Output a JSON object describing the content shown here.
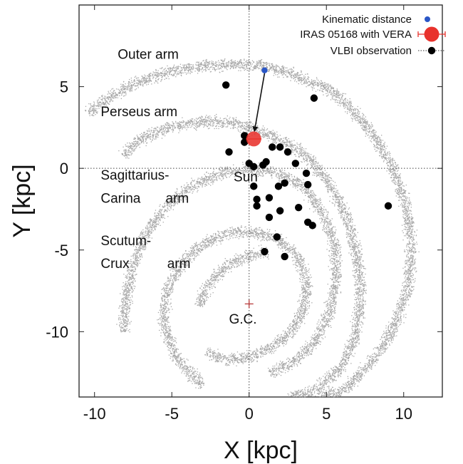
{
  "chart_data": {
    "type": "scatter",
    "xlabel": "X [kpc]",
    "ylabel": "Y [kpc]",
    "xlim": [
      -11,
      12.5
    ],
    "ylim": [
      -14,
      10
    ],
    "xticks": [
      -10,
      -5,
      0,
      5,
      10
    ],
    "xtick_labels": [
      "-10",
      "-5",
      "0",
      "5",
      "10"
    ],
    "yticks": [
      5,
      0,
      -5,
      -10
    ],
    "ytick_labels": [
      "5",
      "0",
      "-5",
      "-10"
    ],
    "zero_lines": "dotted",
    "legend_position": "top-right",
    "legend": [
      {
        "label": "Kinematic distance",
        "marker": "small-blue-dot",
        "color": "#2a56c6"
      },
      {
        "label": "IRAS 05168 with VERA",
        "marker": "large-red-dot-with-errorbar",
        "color": "#e8322c"
      },
      {
        "label": "VLBI observation",
        "marker": "black-dot-with-dotted-errorbar",
        "color": "#000000"
      }
    ],
    "arm_labels": [
      {
        "text": "Outer arm",
        "x": -8.5,
        "y": 6.7
      },
      {
        "text": "Perseus arm",
        "x": -9.6,
        "y": 3.2
      },
      {
        "text": "Sagittarius-",
        "x": -9.6,
        "y": -0.7
      },
      {
        "text": "Carina",
        "x": -9.6,
        "y": -2.1
      },
      {
        "text": "arm",
        "x": -5.4,
        "y": -2.1
      },
      {
        "text": "Scutum-",
        "x": -9.6,
        "y": -4.7
      },
      {
        "text": "Crux",
        "x": -9.6,
        "y": -6.1
      },
      {
        "text": "arm",
        "x": -5.3,
        "y": -6.1
      }
    ],
    "sun_label": {
      "text": "Sun",
      "x": -1.0,
      "y": -0.8
    },
    "gc_label": {
      "text": "G.C.",
      "x": -1.3,
      "y": -9.5
    },
    "galactic_center": {
      "x": 0.0,
      "y": -8.3
    },
    "kinematic_distance": {
      "x": 1.0,
      "y": 6.0
    },
    "iras_05168": {
      "x": 0.3,
      "y": 1.8,
      "x_err": 0.5
    },
    "arrow": {
      "from": [
        1.0,
        6.0
      ],
      "to": [
        0.35,
        2.3
      ]
    },
    "vlbi_points": [
      [
        -1.5,
        5.1
      ],
      [
        4.2,
        4.3
      ],
      [
        -0.3,
        2.0
      ],
      [
        -0.3,
        1.6
      ],
      [
        -1.3,
        1.0
      ],
      [
        1.5,
        1.3
      ],
      [
        2.0,
        1.3
      ],
      [
        2.5,
        1.0
      ],
      [
        1.1,
        0.4
      ],
      [
        0.9,
        0.2
      ],
      [
        0.0,
        0.3
      ],
      [
        0.3,
        0.1
      ],
      [
        3.0,
        0.3
      ],
      [
        3.7,
        -0.3
      ],
      [
        2.3,
        -0.9
      ],
      [
        1.9,
        -1.1
      ],
      [
        0.3,
        -1.1
      ],
      [
        0.5,
        -1.9
      ],
      [
        1.3,
        -1.8
      ],
      [
        0.5,
        -2.3
      ],
      [
        3.8,
        -1.0
      ],
      [
        3.2,
        -2.4
      ],
      [
        2.0,
        -2.6
      ],
      [
        1.3,
        -3.0
      ],
      [
        3.8,
        -3.3
      ],
      [
        4.1,
        -3.5
      ],
      [
        1.8,
        -4.2
      ],
      [
        1.0,
        -5.1
      ],
      [
        2.3,
        -5.4
      ],
      [
        9.0,
        -2.3
      ]
    ],
    "arm_tracks": {
      "outer_arm": [
        [
          -10.5,
          3.4
        ],
        [
          -9.0,
          4.4
        ],
        [
          -7.0,
          5.4
        ],
        [
          -5.0,
          6.0
        ],
        [
          -3.0,
          6.3
        ],
        [
          -1.0,
          6.4
        ],
        [
          1.0,
          6.3
        ],
        [
          3.0,
          5.7
        ],
        [
          5.0,
          4.9
        ],
        [
          6.5,
          3.8
        ],
        [
          8.0,
          2.1
        ],
        [
          9.3,
          0.0
        ],
        [
          10.2,
          -2.5
        ],
        [
          10.5,
          -5.0
        ],
        [
          10.2,
          -7.5
        ],
        [
          9.2,
          -10.0
        ],
        [
          7.8,
          -12.0
        ],
        [
          6.0,
          -13.6
        ],
        [
          4.5,
          -14.0
        ]
      ],
      "perseus_arm": [
        [
          -8.2,
          0.8
        ],
        [
          -7.0,
          1.8
        ],
        [
          -5.0,
          2.6
        ],
        [
          -3.0,
          2.9
        ],
        [
          -1.0,
          2.8
        ],
        [
          1.0,
          2.2
        ],
        [
          2.5,
          1.5
        ],
        [
          4.0,
          0.5
        ],
        [
          5.2,
          -1.0
        ],
        [
          6.3,
          -3.0
        ],
        [
          7.0,
          -5.5
        ],
        [
          7.2,
          -8.0
        ],
        [
          6.8,
          -10.5
        ],
        [
          5.8,
          -12.3
        ],
        [
          4.2,
          -13.6
        ],
        [
          2.5,
          -14.0
        ]
      ],
      "sagittarius_carina_arm": [
        [
          -8.2,
          -10.0
        ],
        [
          -8.0,
          -8.0
        ],
        [
          -7.5,
          -5.8
        ],
        [
          -6.6,
          -3.8
        ],
        [
          -5.3,
          -2.2
        ],
        [
          -3.6,
          -1.0
        ],
        [
          -1.6,
          -0.2
        ],
        [
          0.5,
          0.0
        ],
        [
          2.3,
          -0.4
        ],
        [
          3.8,
          -1.4
        ],
        [
          4.9,
          -3.0
        ],
        [
          5.5,
          -4.8
        ],
        [
          5.6,
          -6.8
        ],
        [
          5.2,
          -8.8
        ],
        [
          4.3,
          -10.5
        ],
        [
          3.0,
          -11.8
        ],
        [
          1.3,
          -12.5
        ]
      ],
      "scutum_crux_arm": [
        [
          -3.0,
          -13.3
        ],
        [
          -4.8,
          -11.5
        ],
        [
          -5.6,
          -9.3
        ],
        [
          -5.3,
          -7.3
        ],
        [
          -4.4,
          -5.8
        ],
        [
          -3.0,
          -4.6
        ],
        [
          -1.3,
          -3.9
        ],
        [
          0.5,
          -3.9
        ],
        [
          2.0,
          -4.4
        ],
        [
          3.0,
          -5.3
        ],
        [
          3.6,
          -6.5
        ],
        [
          3.7,
          -7.8
        ],
        [
          3.3,
          -9.1
        ],
        [
          2.5,
          -10.2
        ],
        [
          1.3,
          -11.0
        ],
        [
          -0.2,
          -11.6
        ],
        [
          -1.7,
          -11.7
        ],
        [
          -2.8,
          -11.2
        ]
      ],
      "inner_arm": [
        [
          -3.3,
          -8.4
        ],
        [
          -2.6,
          -7.0
        ],
        [
          -1.4,
          -5.9
        ],
        [
          0.0,
          -5.3
        ],
        [
          1.2,
          -5.1
        ]
      ]
    }
  }
}
